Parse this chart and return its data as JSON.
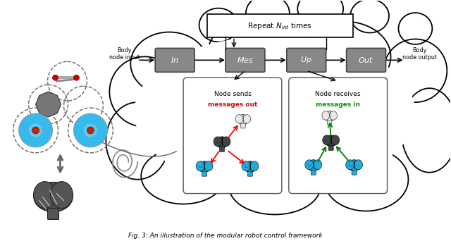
{
  "title": "Fig. 3: An illustration of the modular robot control framework",
  "background_color": "#ffffff",
  "box_color": "#888888",
  "box_text_color": "#ffffff",
  "boxes": [
    "In",
    "Mes",
    "Up",
    "Out"
  ],
  "repeat_text": "Repeat $N_{int}$ times",
  "body_input_text": "Body\nnode input",
  "body_output_text": "Body\nnode output",
  "node_sends_title": "Node sends",
  "node_sends_subtitle": "messages out",
  "node_receives_title": "Node receives",
  "node_receives_subtitle": "messages in",
  "red_color": "#dd0000",
  "green_color": "#009900",
  "brain_dark_color": "#444444",
  "brain_blue_color": "#22aadd",
  "brain_white_color": "#cccccc"
}
